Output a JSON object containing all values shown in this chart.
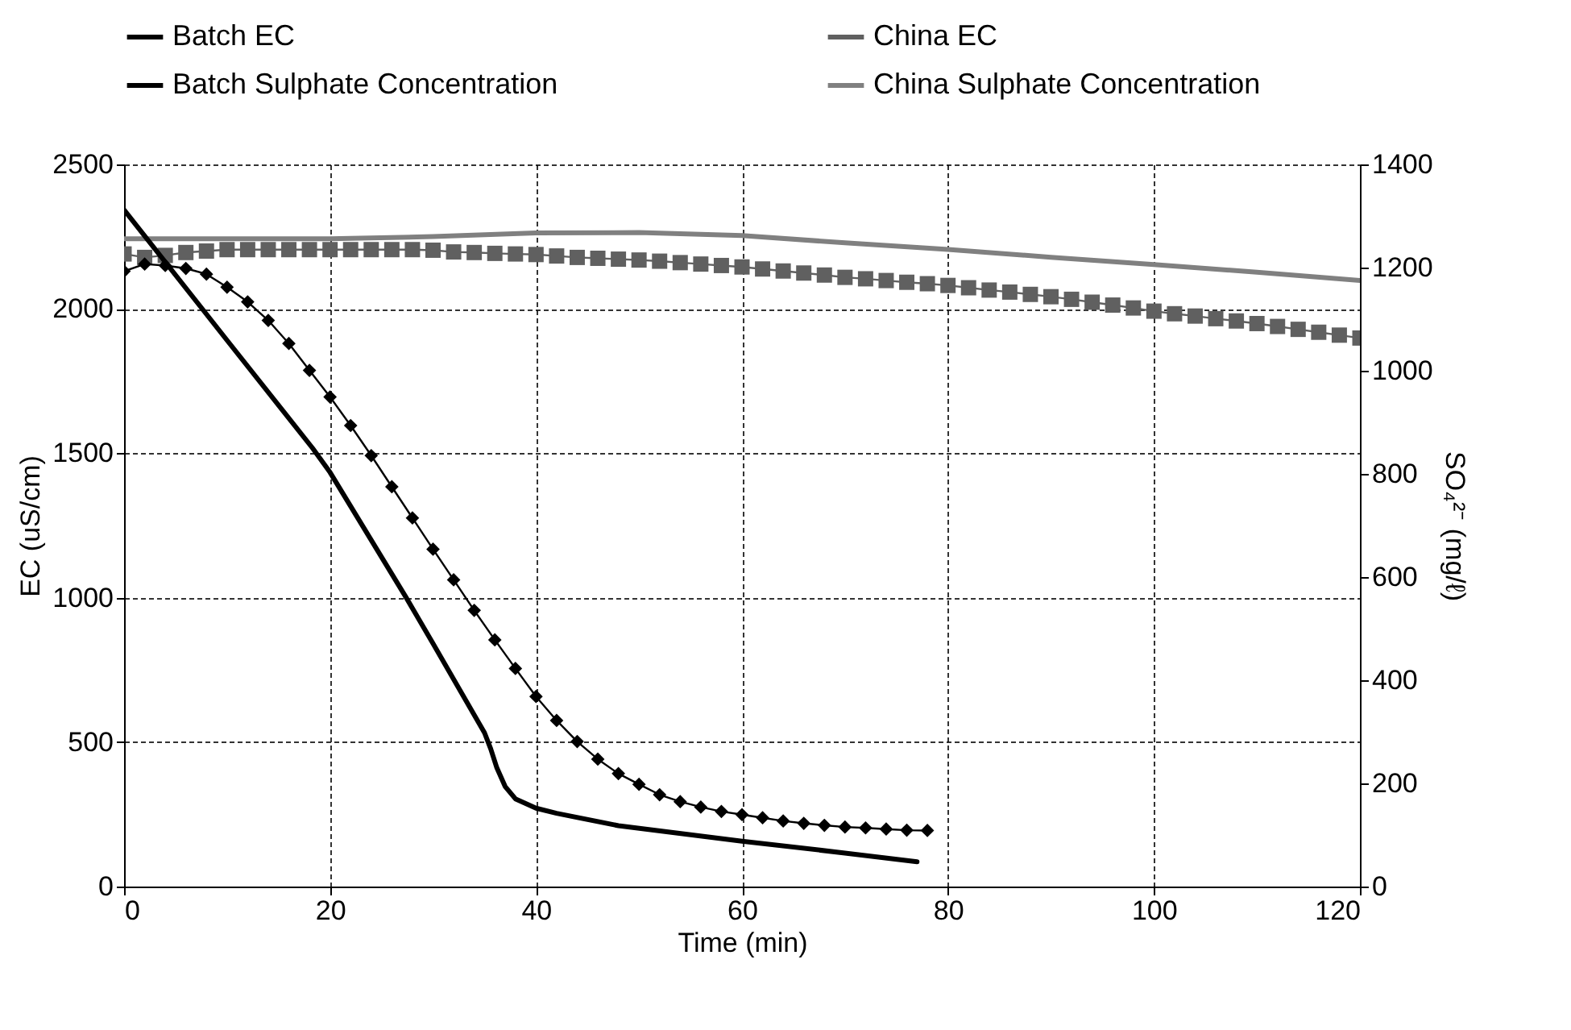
{
  "chart_data": {
    "type": "line",
    "xlabel": "Time (min)",
    "ylabel": "EC (uS/cm)",
    "y2label": "SO₄²⁻ (mg/ℓ)",
    "xlim": [
      0,
      120
    ],
    "xticks": [
      0,
      20,
      40,
      60,
      80,
      100,
      120
    ],
    "ylim": [
      0,
      2500
    ],
    "yticks": [
      0,
      500,
      1000,
      1500,
      2000,
      2500
    ],
    "y2lim": [
      0,
      1400
    ],
    "y2ticks": [
      0,
      200,
      400,
      600,
      800,
      1000,
      1200,
      1400
    ],
    "grid": true,
    "legend": "top",
    "line_style": "solid",
    "series": [
      {
        "name": "Batch EC",
        "color": "#000000",
        "marker": "diamond",
        "x": [
          0,
          2,
          4,
          6,
          8,
          10,
          12,
          14,
          16,
          18,
          20,
          22,
          24,
          26,
          28,
          30,
          32,
          34,
          36,
          38,
          40,
          42,
          44,
          46,
          48,
          50,
          52,
          54,
          56,
          58,
          60,
          62,
          64,
          66,
          68,
          70,
          72,
          74,
          76,
          78
        ],
        "values": [
          2130,
          2155,
          2150,
          2140,
          2120,
          2075,
          2024,
          1960,
          1880,
          1787,
          1695,
          1596,
          1492,
          1384,
          1276,
          1168,
          1062,
          956,
          854,
          755,
          658,
          575,
          502,
          441,
          391,
          354,
          318,
          294,
          275,
          260,
          249,
          238,
          227,
          219,
          212,
          206,
          203,
          199,
          195,
          194
        ]
      },
      {
        "name": "China EC",
        "color": "#606060",
        "marker": "square",
        "x": [
          0,
          2,
          4,
          6,
          8,
          10,
          12,
          14,
          16,
          18,
          20,
          22,
          24,
          26,
          28,
          30,
          32,
          34,
          36,
          38,
          40,
          42,
          44,
          46,
          48,
          50,
          52,
          54,
          56,
          58,
          60,
          62,
          64,
          66,
          68,
          70,
          72,
          74,
          76,
          78,
          80,
          82,
          84,
          86,
          88,
          90,
          92,
          94,
          96,
          98,
          100,
          102,
          104,
          106,
          108,
          110,
          112,
          114,
          116,
          118,
          120
        ],
        "values": [
          2190,
          2178,
          2185,
          2195,
          2200,
          2205,
          2205,
          2205,
          2205,
          2205,
          2205,
          2205,
          2205,
          2205,
          2205,
          2203,
          2197,
          2195,
          2192,
          2190,
          2188,
          2183,
          2178,
          2175,
          2172,
          2169,
          2165,
          2160,
          2155,
          2150,
          2145,
          2138,
          2131,
          2124,
          2117,
          2109,
          2104,
          2098,
          2092,
          2087,
          2081,
          2073,
          2065,
          2058,
          2050,
          2042,
          2033,
          2023,
          2013,
          2003,
          1992,
          1983,
          1975,
          1966,
          1958,
          1949,
          1939,
          1929,
          1919,
          1909,
          1899
        ]
      },
      {
        "name": "Batch Sulphate Concentration",
        "color": "#000000",
        "marker": "none",
        "axis": "y2",
        "x": [
          0,
          10,
          18.3,
          20,
          27.4,
          30,
          35,
          35.6,
          36.2,
          37,
          38,
          40,
          42,
          48,
          60,
          70,
          77
        ],
        "values": [
          1312,
          1059,
          850,
          803,
          560,
          471,
          298,
          267,
          230,
          194,
          170,
          152,
          142,
          118,
          88,
          65,
          48
        ]
      },
      {
        "name": "China Sulphate Concentration",
        "color": "#808080",
        "marker": "none",
        "axis": "y2",
        "x": [
          0,
          10,
          20,
          30,
          40,
          50,
          60,
          70,
          80,
          90,
          100,
          110,
          120
        ],
        "values": [
          1256,
          1256,
          1256,
          1260,
          1267,
          1268,
          1262,
          1248,
          1235,
          1220,
          1206,
          1191,
          1175
        ]
      }
    ]
  }
}
